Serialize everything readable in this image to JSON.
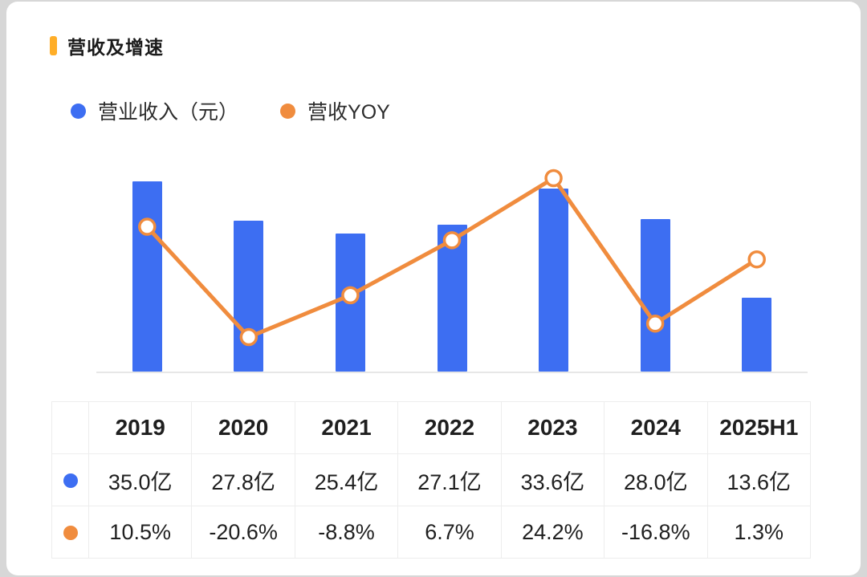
{
  "page": {
    "title": "营收及增速"
  },
  "colors": {
    "bar": "#3D6EF2",
    "line": "#F08C3E",
    "accent": "#FFAE28",
    "marker_fill": "#FFFFFF"
  },
  "legend": [
    {
      "label": "营业收入（元）",
      "color": "#3D6EF2"
    },
    {
      "label": "营收YOY",
      "color": "#F08C3E"
    }
  ],
  "chart_data": {
    "type": "bar",
    "subtype": "bar+line combo",
    "title": "营收及增速",
    "categories": [
      "2019",
      "2020",
      "2021",
      "2022",
      "2023",
      "2024",
      "2025H1"
    ],
    "series": [
      {
        "name": "营业收入（元）",
        "type": "bar",
        "unit": "亿",
        "values": [
          35.0,
          27.8,
          25.4,
          27.1,
          33.6,
          28.0,
          13.6
        ],
        "labels": [
          "35.0亿",
          "27.8亿",
          "25.4亿",
          "27.1亿",
          "33.6亿",
          "28.0亿",
          "13.6亿"
        ]
      },
      {
        "name": "营收YOY",
        "type": "line",
        "unit": "%",
        "values": [
          10.5,
          -20.6,
          -8.8,
          6.7,
          24.2,
          -16.8,
          1.3
        ],
        "labels": [
          "10.5%",
          "-20.6%",
          "-8.8%",
          "6.7%",
          "24.2%",
          "-16.8%",
          "1.3%"
        ]
      }
    ],
    "legend_position": "top",
    "grid": false,
    "bar_axis_range": [
      0,
      38
    ],
    "line_axis_range": [
      -25,
      28
    ]
  },
  "table": {
    "header": [
      "",
      "2019",
      "2020",
      "2021",
      "2022",
      "2023",
      "2024",
      "2025H1"
    ],
    "rows": [
      {
        "marker_color": "#3D6EF2",
        "cells": [
          "35.0亿",
          "27.8亿",
          "25.4亿",
          "27.1亿",
          "33.6亿",
          "28.0亿",
          "13.6亿"
        ]
      },
      {
        "marker_color": "#F08C3E",
        "cells": [
          "10.5%",
          "-20.6%",
          "-8.8%",
          "6.7%",
          "24.2%",
          "-16.8%",
          "1.3%"
        ]
      }
    ]
  }
}
